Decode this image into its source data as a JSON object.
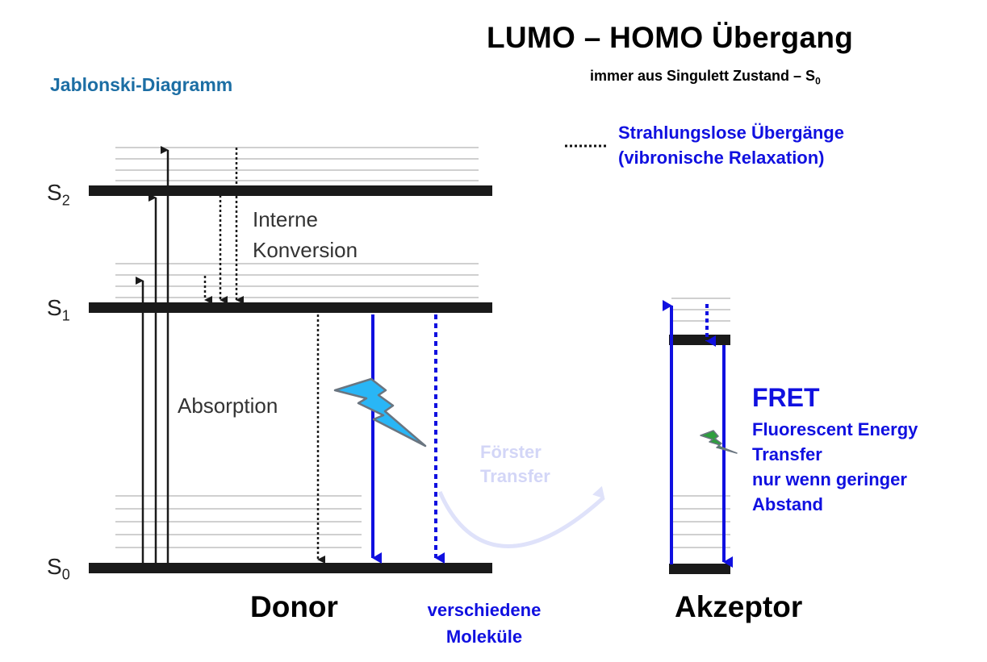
{
  "header": {
    "title": "LUMO – HOMO Übergang",
    "subtitle_text": "immer aus Singulett Zustand – S",
    "subtitle_subscript": "0"
  },
  "diagram_title": "Jablonski-Diagramm",
  "legend": {
    "symbol": "dotted-line",
    "line1": "Strahlungslose Übergänge",
    "line2": "(vibronische Relaxation)"
  },
  "levels": [
    {
      "letter": "S",
      "sub": "2"
    },
    {
      "letter": "S",
      "sub": "1"
    },
    {
      "letter": "S",
      "sub": "0"
    }
  ],
  "labels": {
    "internal_conversion_1": "Interne",
    "internal_conversion_2": "Konversion",
    "absorption": "Absorption",
    "forster_1": "Förster",
    "forster_2": "Transfer",
    "donor": "Donor",
    "acceptor": "Akzeptor",
    "molecules_1": "verschiedene",
    "molecules_2": "Moleküle"
  },
  "fret": {
    "heading": "FRET",
    "lines": [
      "Fluorescent Energy",
      "Transfer",
      "nur wenn geringer",
      "Abstand"
    ]
  },
  "colors": {
    "level_bar": "#1a1a1a",
    "vibrational_line": "#d0d0d0",
    "blue_arrow": "#1010e0",
    "title_blue": "#1c6ea4",
    "forster_arc": "#dfe2fa",
    "lightning_large": "#29b6f6",
    "lightning_small": "#2e9e3e"
  },
  "icons": [
    "lightning-bolt-icon",
    "small-lightning-bolt-icon"
  ]
}
